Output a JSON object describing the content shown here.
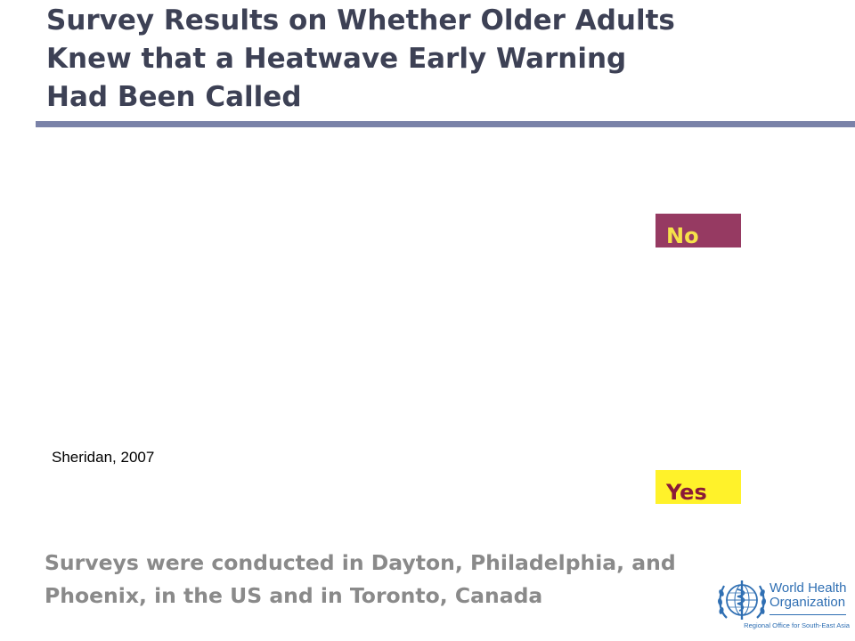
{
  "slide": {
    "title": "Survey Results on Whether Older Adults\nKnew that a Heatwave Early Warning\nHad Been Called",
    "legend": {
      "no": {
        "label": "No",
        "color": "#963a62",
        "text_color": "#f5e24a"
      },
      "yes": {
        "label": "Yes",
        "color": "#fff22a",
        "text_color": "#8a1a38"
      }
    },
    "citation": "Sheridan, 2007",
    "footnote": "Surveys were conducted in Dayton, Philadelphia, and\nPhoenix, in the US and in Toronto, Canada"
  },
  "logo": {
    "name": "World Health\nOrganization",
    "region": "Regional Office for South-East Asia",
    "icon": "who-emblem-icon",
    "color": "#2f6fb3"
  },
  "theme": {
    "title_color": "#3d4155",
    "rule_color": "#7a82a8",
    "footnote_color": "#8a8a8a"
  }
}
